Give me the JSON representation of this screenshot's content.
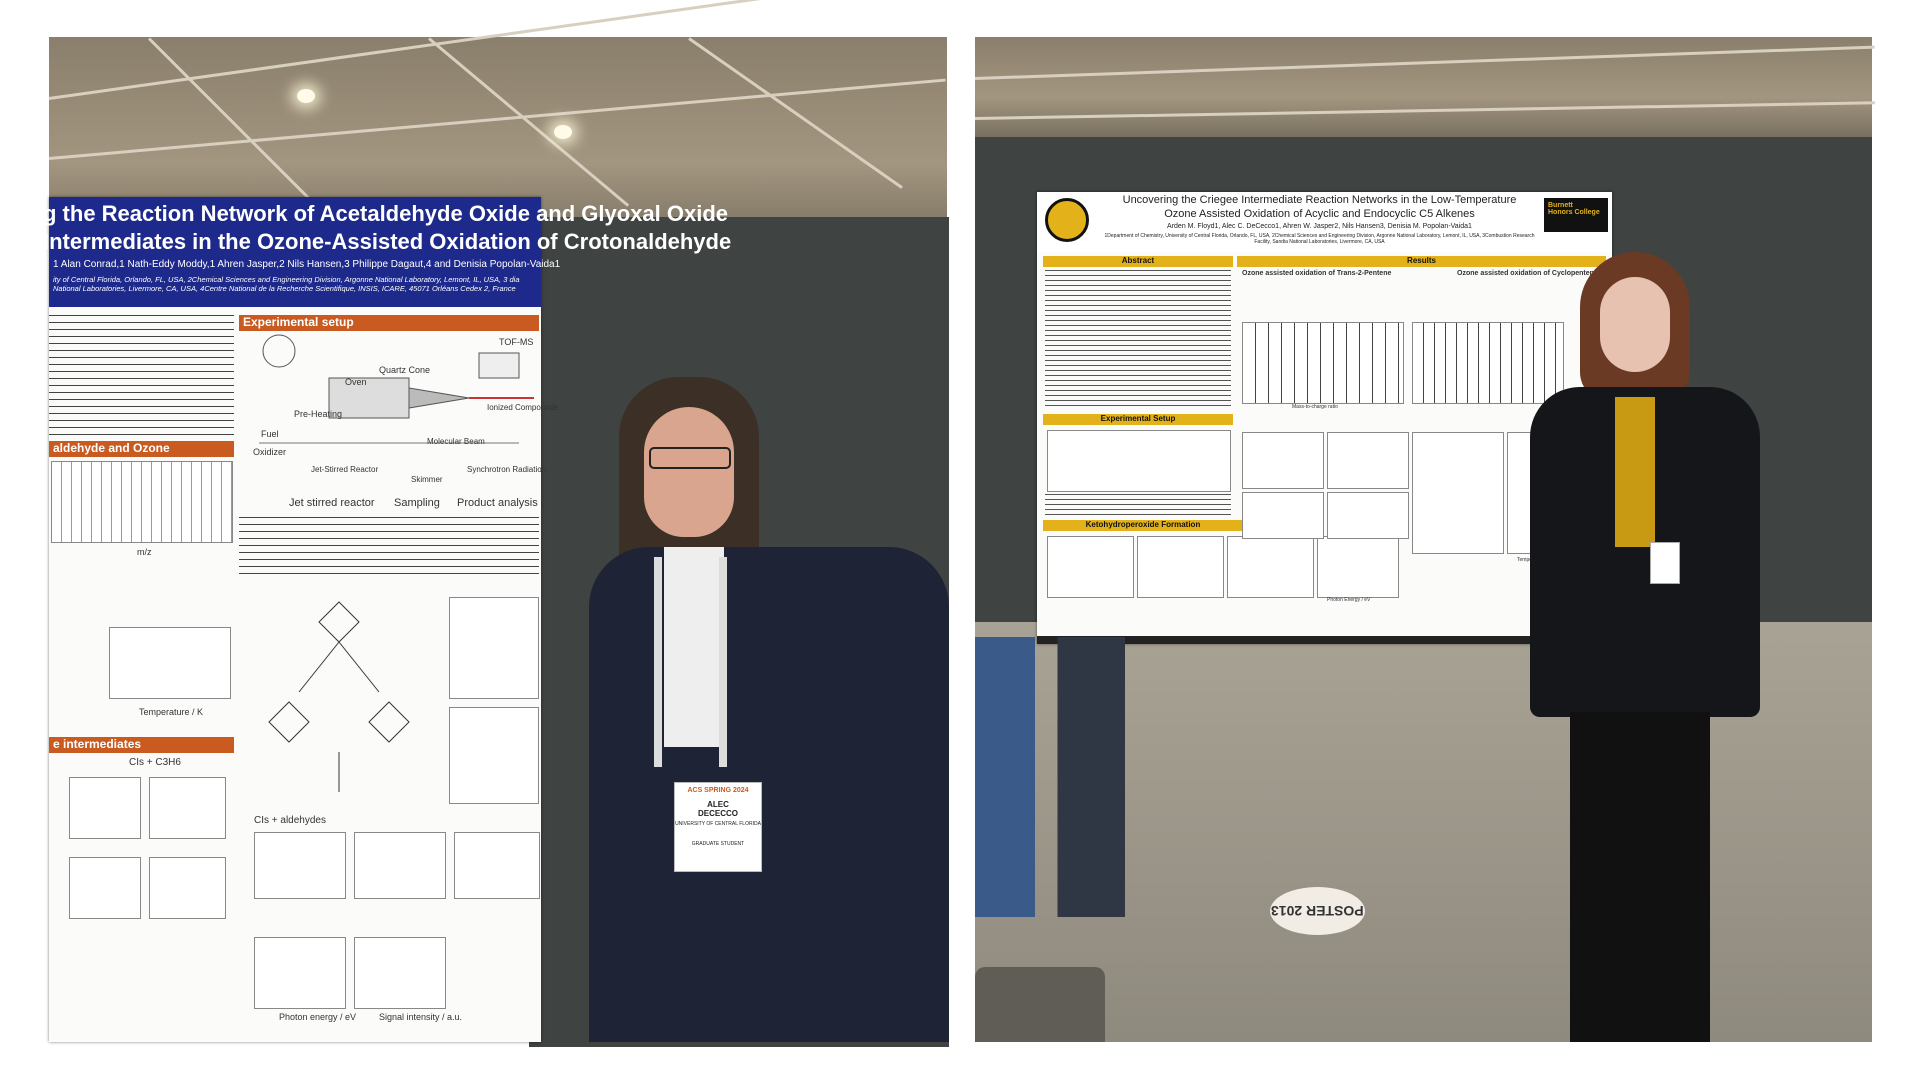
{
  "left_photo": {
    "poster": {
      "title_line1": "g the Reaction Network of Acetaldehyde Oxide and Glyoxal Oxide",
      "title_line2": "Intermediates in the Ozone-Assisted Oxidation of Crotonaldehyde",
      "authors": "1 Alan Conrad,1 Nath-Eddy Moddy,1 Ahren Jasper,2 Nils Hansen,3 Philippe Dagaut,4 and Denisia Popolan-Vaida1",
      "affiliations": "ity of Central Florida, Orlando, FL, USA, 2Chemical Sciences and Engineering Division, Argonne National Laboratory, Lemont, IL, USA, 3 dia National Laboratories, Livermore, CA, USA, 4Centre National de la Recherche Scientifique, INSIS, ICARE, 45071 Orléans Cedex 2, France",
      "section_experimental": "Experimental setup",
      "section_acetaldehyde": "aldehyde and Ozone",
      "section_intermediates": "e intermediates",
      "diagram_labels": {
        "tof_ms": "TOF-MS",
        "quartz_cone": "Quartz Cone",
        "oven": "Oven",
        "pre_heating": "Pre-Heating",
        "fuel": "Fuel",
        "oxidizer": "Oxidizer",
        "ionized_compounds": "Ionized Compounds",
        "molecular_beam": "Molecular Beam",
        "jet_stirred_reactor": "Jet-Stirred Reactor",
        "skimmer": "Skimmer",
        "synchrotron_radiation": "Synchrotron Radiation"
      },
      "stages": [
        "Jet stirred reactor",
        "Sampling",
        "Product analysis"
      ],
      "axis_labels": [
        "m/z",
        "Temperature / K",
        "Photon energy / eV",
        "Signal intensity / a.u."
      ],
      "series_labels": [
        "CIs + C3H6",
        "CIs + aldehydes"
      ]
    },
    "badge": {
      "event": "ACS SPRING 2024",
      "name_line1": "ALEC",
      "name_line2": "DECECCO",
      "affiliation": "UNIVERSITY OF CENTRAL FLORIDA",
      "role": "GRADUATE STUDENT"
    }
  },
  "right_photo": {
    "poster": {
      "title_line1": "Uncovering the Criegee Intermediate Reaction Networks in the Low-Temperature",
      "title_line2": "Ozone Assisted Oxidation of Acyclic and Endocyclic C5 Alkenes",
      "authors": "Arden M. Floyd1, Alec C. DeCecco1, Ahren W. Jasper2, Nils Hansen3, Denisia M. Popolan-Vaida1",
      "affiliations": "1Department of Chemistry, University of Central Florida, Orlando, FL, USA, 2Chemical Sciences and Engineering Division, Argonne National Laboratory, Lemont, IL, USA, 3Combustion Research Facility, Sandia National Laboratories, Livermore, CA, USA",
      "logo_text_line1": "Burnett",
      "logo_text_line2": "Honors College",
      "sections": {
        "abstract": "Abstract",
        "results": "Results",
        "experimental": "Experimental Setup",
        "ketohydroperoxide": "Ketohydroperoxide Formation"
      },
      "subheads": {
        "trans": "Ozone assisted oxidation of Trans-2-Pentene",
        "cyclo": "Ozone assisted oxidation of Cyclopentene"
      },
      "axis_labels": [
        "Mass-to-charge ratio",
        "Photon Energy / eV",
        "Temperature / K"
      ]
    },
    "floor_sign": "POSTER 2013"
  },
  "colors": {
    "left_header": "#1d2a8c",
    "left_section": "#c95a20",
    "right_section": "#e3b21b",
    "board": "#3f4341"
  }
}
